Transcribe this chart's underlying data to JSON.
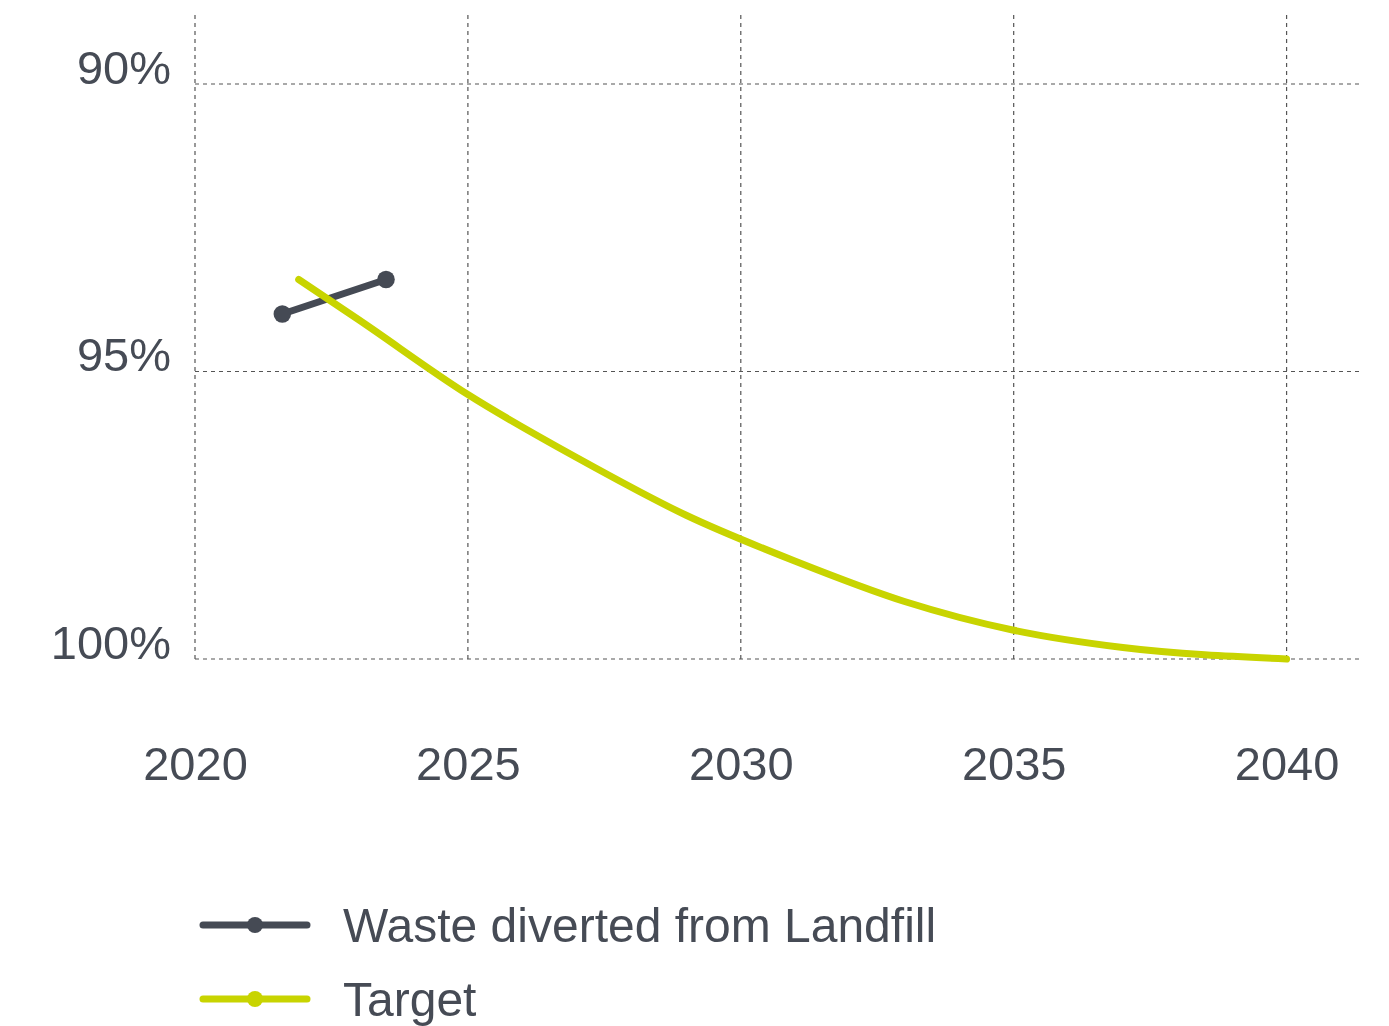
{
  "chart_data": {
    "type": "line",
    "xlim": [
      2020,
      2041.4
    ],
    "xticks": [
      2020,
      2025,
      2030,
      2035,
      2040
    ],
    "ylim": [
      100,
      88.8
    ],
    "yticks": [
      {
        "value": 90,
        "label": "90%"
      },
      {
        "value": 95,
        "label": "95%"
      },
      {
        "value": 100,
        "label": "100%"
      }
    ],
    "grid": true,
    "legend": "bottom",
    "series": [
      {
        "name": "Waste diverted from Landfill",
        "color": "#454a54",
        "marker": "circle",
        "x": [
          2021.6,
          2023.5
        ],
        "values": [
          94.0,
          93.4
        ]
      },
      {
        "name": "Target",
        "color": "#c8d400",
        "marker": "none",
        "x": [
          2021.9,
          2023,
          2025,
          2027,
          2029,
          2031,
          2033,
          2035,
          2037,
          2040
        ],
        "values": [
          93.4,
          94.1,
          95.4,
          96.5,
          97.5,
          98.3,
          99.0,
          99.5,
          99.8,
          100
        ]
      }
    ]
  }
}
